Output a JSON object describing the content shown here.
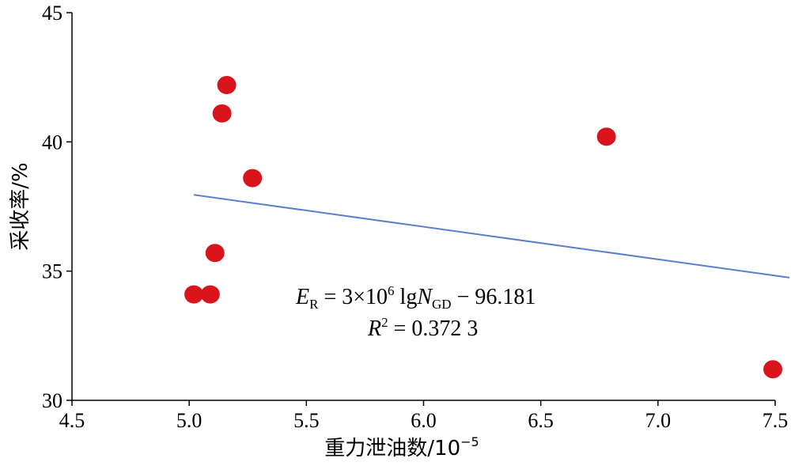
{
  "chart_data": {
    "type": "scatter",
    "xlabel_main": "重力泄油数/10",
    "xlabel_exp": "−5",
    "ylabel": "采收率/%",
    "xlim": [
      4.5,
      7.5
    ],
    "ylim": [
      30,
      45
    ],
    "xticks": [
      "4.5",
      "5.0",
      "5.5",
      "6.0",
      "6.5",
      "7.0",
      "7.5"
    ],
    "yticks": [
      "30",
      "35",
      "40",
      "45"
    ],
    "points": [
      {
        "x": 5.02,
        "y": 34.1
      },
      {
        "x": 5.09,
        "y": 34.1
      },
      {
        "x": 5.11,
        "y": 35.7
      },
      {
        "x": 5.14,
        "y": 41.1
      },
      {
        "x": 5.16,
        "y": 42.2
      },
      {
        "x": 5.27,
        "y": 38.6
      },
      {
        "x": 6.78,
        "y": 40.2
      },
      {
        "x": 7.49,
        "y": 31.2
      }
    ],
    "trendline": {
      "x": [
        5.02,
        7.5
      ],
      "y": [
        37.95,
        34.75
      ]
    },
    "equation": {
      "line1": {
        "lhs": "E",
        "lhs_sub": "R",
        "eq": " = 3×10",
        "exp": "6",
        "lg": " lg",
        "var": "N",
        "var_sub": "GD",
        "rest": " − 96.181"
      },
      "line2": {
        "var": "R",
        "exp": "2",
        "rest": " = 0.372 3"
      }
    },
    "grid": false,
    "colors": {
      "points": "#d9141b",
      "trendline": "#5b7fcc"
    }
  }
}
